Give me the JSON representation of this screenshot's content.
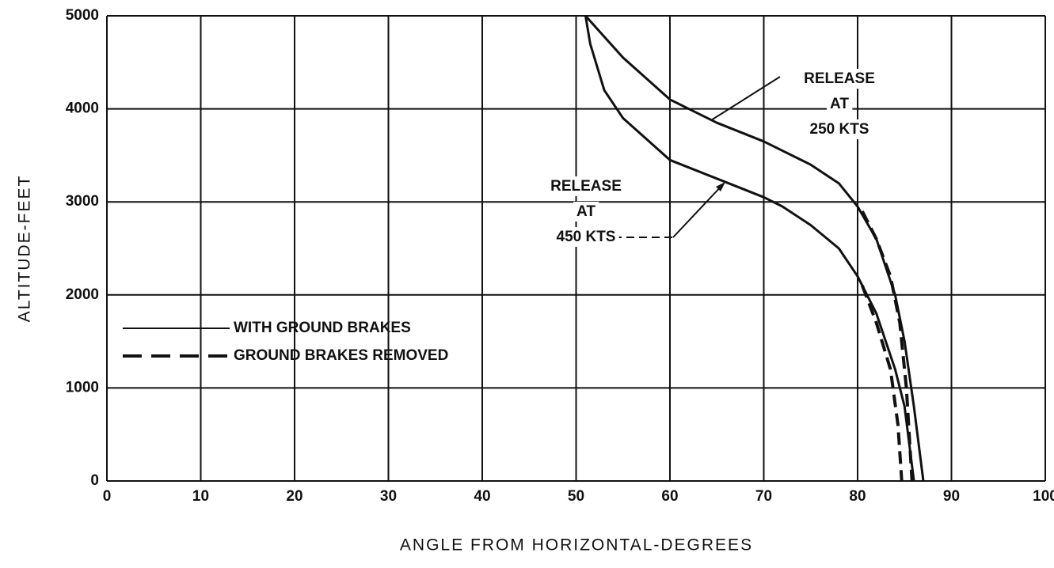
{
  "chart_data": {
    "type": "line",
    "x_label": "ANGLE FROM HORIZONTAL-DEGREES",
    "y_label": "ALTITUDE-FEET",
    "xlim": [
      0,
      100
    ],
    "xticks": [
      0,
      10,
      20,
      30,
      40,
      50,
      60,
      70,
      80,
      90,
      100
    ],
    "ylim": [
      0,
      5000
    ],
    "yticks": [
      0,
      1000,
      2000,
      3000,
      4000,
      5000
    ],
    "grid": true,
    "legend": "left",
    "series": [
      {
        "name": "WITH GROUND BRAKES",
        "color": "#111111",
        "dashed": false,
        "x": [
          51,
          55,
          60,
          65,
          70,
          75,
          78,
          80,
          82,
          84,
          85,
          86,
          87
        ],
        "values": [
          5000,
          4550,
          4100,
          3850,
          3650,
          3400,
          3200,
          2950,
          2600,
          2000,
          1500,
          800,
          0
        ]
      },
      {
        "name": "GROUND BRAKES REMOVED",
        "color": "#111111",
        "dashed": true,
        "x": [
          80.5,
          82,
          83.5,
          84.5,
          85.2,
          85.8
        ],
        "values": [
          2900,
          2600,
          2200,
          1700,
          1000,
          0
        ]
      },
      {
        "name": "WITH GROUND BRAKES",
        "color": "#111111",
        "dashed": false,
        "x": [
          51,
          51.5,
          53,
          55,
          60,
          65,
          70,
          72,
          75,
          78,
          80,
          82,
          84,
          85,
          86
        ],
        "values": [
          5000,
          4700,
          4200,
          3900,
          3450,
          3250,
          3050,
          2950,
          2750,
          2500,
          2200,
          1800,
          1200,
          800,
          0
        ]
      },
      {
        "name": "GROUND BRAKES REMOVED",
        "color": "#111111",
        "dashed": true,
        "x": [
          80.5,
          82,
          83.5,
          84.3,
          84.7
        ],
        "values": [
          2100,
          1700,
          1200,
          600,
          0
        ]
      }
    ],
    "annotations": [
      {
        "lines": [
          "RELEASE",
          "AT",
          "250 KTS"
        ]
      },
      {
        "lines": [
          "RELEASE",
          "AT",
          "450 KTS"
        ]
      }
    ]
  }
}
